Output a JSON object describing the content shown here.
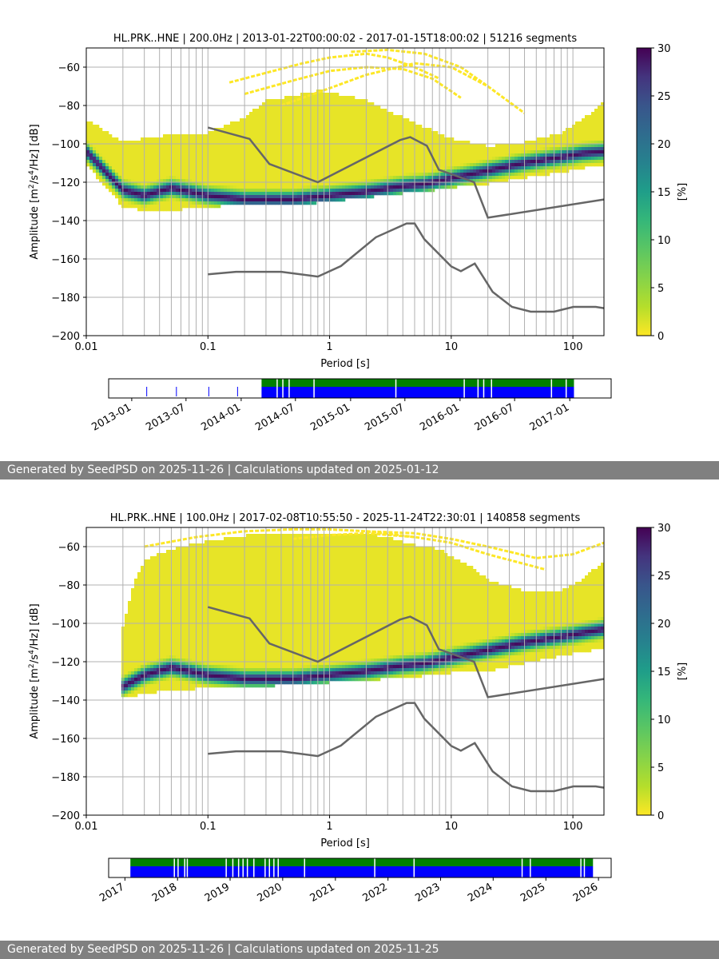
{
  "colors": {
    "reference_curves": "#666666",
    "grid": "#b0b0b0",
    "coverage_data": "#0000ff",
    "coverage_gaps": "#008000",
    "footer_background": "#808080",
    "colormap": "viridis_r"
  },
  "panels": [
    {
      "footer": "Generated by SeedPSD on 2025-11-26 | Calculations updated on 2025-01-12",
      "chart_data": {
        "type": "heatmap",
        "title": "HL.PRK..HNE | 200.0Hz | 2013-01-22T00:00:02 - 2017-01-15T18:00:02 | 51216 segments",
        "xlabel": "Period [s]",
        "ylabel_pre": "Amplitude [m",
        "ylabel_sup1": "2",
        "ylabel_mid": "/s",
        "ylabel_sup2": "4",
        "ylabel_post": "/Hz] [dB]",
        "x_scale": "log",
        "xlim": [
          0.01,
          180
        ],
        "ylim": [
          -200,
          -50
        ],
        "grid": true,
        "x_ticks": [
          {
            "v": 0.01,
            "label": "0.01"
          },
          {
            "v": 0.1,
            "label": "0.1"
          },
          {
            "v": 1,
            "label": "1"
          },
          {
            "v": 10,
            "label": "10"
          },
          {
            "v": 100,
            "label": "100"
          }
        ],
        "y_ticks": [
          {
            "v": -60,
            "label": "−60"
          },
          {
            "v": -80,
            "label": "−80"
          },
          {
            "v": -100,
            "label": "−100"
          },
          {
            "v": -120,
            "label": "−120"
          },
          {
            "v": -140,
            "label": "−140"
          },
          {
            "v": -160,
            "label": "−160"
          },
          {
            "v": -180,
            "label": "−180"
          },
          {
            "v": -200,
            "label": "−200"
          }
        ],
        "colorbar": {
          "label": "[%]",
          "range": [
            0,
            30
          ],
          "ticks": [
            {
              "v": 0,
              "label": "0"
            },
            {
              "v": 5,
              "label": "5"
            },
            {
              "v": 10,
              "label": "10"
            },
            {
              "v": 15,
              "label": "15"
            },
            {
              "v": 20,
              "label": "20"
            },
            {
              "v": 25,
              "label": "25"
            },
            {
              "v": 30,
              "label": "30"
            }
          ]
        },
        "mode": {
          "x": [
            0.01,
            0.02,
            0.03,
            0.05,
            0.1,
            0.2,
            0.3,
            0.5,
            1,
            2,
            4,
            6,
            10,
            20,
            40,
            80,
            120,
            180
          ],
          "y": [
            -104,
            -124,
            -127,
            -123,
            -127,
            -129,
            -129,
            -129,
            -127,
            -125,
            -122,
            -121,
            -118,
            -114,
            -110,
            -107,
            -105,
            -104
          ]
        },
        "spread": {
          "x": [
            0.01,
            0.02,
            0.03,
            0.05,
            0.1,
            0.2,
            0.3,
            0.5,
            0.8,
            1,
            1.5,
            2,
            3,
            4,
            6,
            10,
            20,
            40,
            80,
            120,
            180
          ],
          "upper": [
            -88,
            -100,
            -98,
            -96,
            -95,
            -87,
            -78,
            -76,
            -73,
            -74,
            -76,
            -78,
            -84,
            -87,
            -92,
            -98,
            -102,
            -100,
            -95,
            -88,
            -79
          ],
          "lower": [
            -110,
            -132,
            -134,
            -134,
            -132,
            -131,
            -131,
            -131,
            -130,
            -129,
            -128,
            -127,
            -126,
            -125,
            -124,
            -122,
            -120,
            -117,
            -114,
            -112,
            -110
          ]
        },
        "sparse_curves": [
          {
            "x": [
              0.15,
              0.3,
              0.6,
              1,
              2,
              3,
              5,
              8
            ],
            "y": [
              -68,
              -63,
              -58,
              -55,
              -53,
              -55,
              -60,
              -66
            ]
          },
          {
            "x": [
              0.2,
              0.5,
              1,
              2,
              4,
              7,
              12
            ],
            "y": [
              -74,
              -67,
              -62,
              -60,
              -61,
              -66,
              -76
            ]
          },
          {
            "x": [
              0.4,
              1,
              2,
              5,
              10,
              20,
              40
            ],
            "y": [
              -80,
              -71,
              -64,
              -58,
              -60,
              -70,
              -84
            ]
          },
          {
            "x": [
              1.5,
              3,
              6,
              12,
              20
            ],
            "y": [
              -52,
              -51,
              -53,
              -60,
              -70
            ]
          }
        ],
        "reference_curves": [
          {
            "x": [
              0.1,
              0.22,
              0.32,
              0.8,
              3.8,
              4.6,
              6.3,
              7.9,
              15.4,
              20,
              180
            ],
            "y": [
              -91.5,
              -97.4,
              -110.5,
              -120,
              -98,
              -96.5,
              -101,
              -113.5,
              -120,
              -138.5,
              -129
            ]
          },
          {
            "x": [
              0.1,
              0.17,
              0.4,
              0.8,
              1.24,
              2.4,
              4.3,
              5,
              6,
              10,
              12,
              15.6,
              21.9,
              31.6,
              45,
              70,
              101,
              154,
              180
            ],
            "y": [
              -168,
              -166.7,
              -166.7,
              -169.2,
              -163.7,
              -148.7,
              -141.5,
              -141.5,
              -149.7,
              -163.9,
              -166.4,
              -162.4,
              -177.2,
              -185,
              -187.5,
              -187.5,
              -185,
              -185,
              -185.7
            ]
          }
        ],
        "timeline": {
          "ticks": [
            "2013-01",
            "2013-07",
            "2014-01",
            "2014-07",
            "2015-01",
            "2015-07",
            "2016-01",
            "2016-07",
            "2017-01"
          ],
          "tick_dates": [
            "2013-01-01",
            "2013-07-01",
            "2014-01-01",
            "2014-07-01",
            "2015-01-01",
            "2015-07-01",
            "2016-01-01",
            "2016-07-01",
            "2017-01-01"
          ],
          "range": [
            "2012-10-16",
            "2017-05-19"
          ],
          "coverage_start": "2014-03-10",
          "coverage_end": "2017-01-15",
          "early_marks": [
            "2013-02-20",
            "2013-05-30",
            "2013-09-15",
            "2013-12-20"
          ],
          "gaps": [
            "2014-05-01",
            "2014-05-20",
            "2014-06-10",
            "2014-09-01",
            "2015-06-01",
            "2016-01-15",
            "2016-03-01",
            "2016-03-20",
            "2016-04-15",
            "2016-11-01",
            "2016-12-20"
          ]
        }
      }
    },
    {
      "footer": "Generated by SeedPSD on 2025-11-26 | Calculations updated on 2025-11-25",
      "chart_data": {
        "type": "heatmap",
        "title": "HL.PRK..HNE | 100.0Hz | 2017-02-08T10:55:50 - 2025-11-24T22:30:01 | 140858 segments",
        "xlabel": "Period [s]",
        "ylabel_pre": "Amplitude [m",
        "ylabel_sup1": "2",
        "ylabel_mid": "/s",
        "ylabel_sup2": "4",
        "ylabel_post": "/Hz] [dB]",
        "x_scale": "log",
        "xlim": [
          0.01,
          180
        ],
        "ylim": [
          -200,
          -50
        ],
        "grid": true,
        "x_ticks": [
          {
            "v": 0.01,
            "label": "0.01"
          },
          {
            "v": 0.1,
            "label": "0.1"
          },
          {
            "v": 1,
            "label": "1"
          },
          {
            "v": 10,
            "label": "10"
          },
          {
            "v": 100,
            "label": "100"
          }
        ],
        "y_ticks": [
          {
            "v": -60,
            "label": "−60"
          },
          {
            "v": -80,
            "label": "−80"
          },
          {
            "v": -100,
            "label": "−100"
          },
          {
            "v": -120,
            "label": "−120"
          },
          {
            "v": -140,
            "label": "−140"
          },
          {
            "v": -160,
            "label": "−160"
          },
          {
            "v": -180,
            "label": "−180"
          },
          {
            "v": -200,
            "label": "−200"
          }
        ],
        "colorbar": {
          "label": "[%]",
          "range": [
            0,
            30
          ],
          "ticks": [
            {
              "v": 0,
              "label": "0"
            },
            {
              "v": 5,
              "label": "5"
            },
            {
              "v": 10,
              "label": "10"
            },
            {
              "v": 15,
              "label": "15"
            },
            {
              "v": 20,
              "label": "20"
            },
            {
              "v": 25,
              "label": "25"
            },
            {
              "v": 30,
              "label": "30"
            }
          ]
        },
        "mode": {
          "x": [
            0.02,
            0.03,
            0.05,
            0.1,
            0.2,
            0.3,
            0.5,
            1,
            2,
            4,
            6,
            10,
            20,
            40,
            80,
            120,
            180
          ],
          "y": [
            -133,
            -127,
            -123,
            -127,
            -129,
            -129,
            -129,
            -127,
            -125,
            -122,
            -121,
            -118,
            -114,
            -110,
            -107,
            -105,
            -103
          ]
        },
        "spread": {
          "x": [
            0.019,
            0.025,
            0.03,
            0.05,
            0.1,
            0.2,
            0.3,
            0.5,
            1,
            2,
            3,
            5,
            8,
            10,
            15,
            20,
            40,
            80,
            120,
            180
          ],
          "upper": [
            -108,
            -78,
            -68,
            -62,
            -58,
            -55,
            -54,
            -54,
            -55,
            -54,
            -56,
            -60,
            -62,
            -66,
            -72,
            -78,
            -84,
            -84,
            -78,
            -68
          ],
          "lower": [
            -138,
            -137,
            -136,
            -134,
            -133,
            -132,
            -132,
            -131,
            -130,
            -129,
            -128,
            -127,
            -126,
            -125,
            -124,
            -124,
            -120,
            -116,
            -114,
            -112
          ]
        },
        "sparse_curves": [
          {
            "x": [
              0.03,
              0.08,
              0.2,
              0.5,
              1,
              2,
              5
            ],
            "y": [
              -60,
              -55,
              -52,
              -51,
              -51,
              -52,
              -55
            ]
          },
          {
            "x": [
              0.5,
              1,
              2,
              5,
              10,
              20,
              60
            ],
            "y": [
              -56,
              -54,
              -53,
              -55,
              -58,
              -64,
              -72
            ]
          },
          {
            "x": [
              2,
              5,
              10,
              20,
              50,
              100,
              180
            ],
            "y": [
              -52,
              -53,
              -56,
              -60,
              -66,
              -64,
              -58
            ]
          }
        ],
        "reference_curves": [
          {
            "x": [
              0.1,
              0.22,
              0.32,
              0.8,
              3.8,
              4.6,
              6.3,
              7.9,
              15.4,
              20,
              180
            ],
            "y": [
              -91.5,
              -97.4,
              -110.5,
              -120,
              -98,
              -96.5,
              -101,
              -113.5,
              -120,
              -138.5,
              -129
            ]
          },
          {
            "x": [
              0.1,
              0.17,
              0.4,
              0.8,
              1.24,
              2.4,
              4.3,
              5,
              6,
              10,
              12,
              15.6,
              21.9,
              31.6,
              45,
              70,
              101,
              154,
              180
            ],
            "y": [
              -168,
              -166.7,
              -166.7,
              -169.2,
              -163.7,
              -148.7,
              -141.5,
              -141.5,
              -149.7,
              -163.9,
              -166.4,
              -162.4,
              -177.2,
              -185,
              -187.5,
              -187.5,
              -185,
              -185,
              -185.7
            ]
          }
        ],
        "timeline": {
          "ticks": [
            "2017",
            "2018",
            "2019",
            "2020",
            "2021",
            "2022",
            "2023",
            "2024",
            "2025",
            "2026"
          ],
          "tick_dates": [
            "2017-01-01",
            "2018-01-01",
            "2019-01-01",
            "2020-01-01",
            "2021-01-01",
            "2022-01-01",
            "2023-01-01",
            "2024-01-01",
            "2025-01-01",
            "2026-01-01"
          ],
          "range": [
            "2016-09-10",
            "2026-03-30"
          ],
          "coverage_start": "2017-02-08",
          "coverage_end": "2025-11-24",
          "early_marks": [],
          "gaps": [
            "2017-12-10",
            "2018-01-05",
            "2018-02-20",
            "2018-03-10",
            "2018-12-05",
            "2019-01-20",
            "2019-03-01",
            "2019-04-01",
            "2019-05-01",
            "2019-06-15",
            "2019-09-01",
            "2019-10-01",
            "2019-11-01",
            "2019-12-01",
            "2020-06-01",
            "2021-10-01",
            "2022-07-01",
            "2024-07-20",
            "2024-09-15",
            "2025-09-01",
            "2025-09-25"
          ]
        }
      }
    }
  ]
}
